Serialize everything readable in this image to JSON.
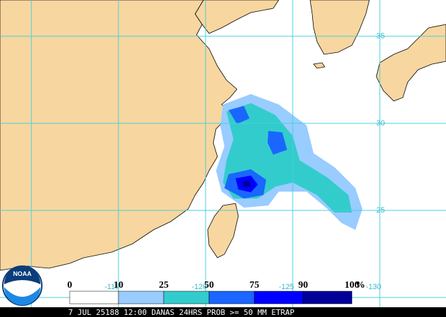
{
  "map": {
    "logo": "NOAA",
    "latitude_labels": [
      "35",
      "30",
      "25"
    ],
    "longitude_labels": [
      "-115",
      "-120",
      "-125",
      "-130"
    ],
    "legend": {
      "stops": [
        "0",
        "10",
        "25",
        "50",
        "75",
        "90",
        "100"
      ],
      "unit": "%",
      "colors": [
        "#ffffff",
        "#99ccff",
        "#33cccc",
        "#1a66ff",
        "#0000ff",
        "#000099"
      ]
    },
    "caption": "7 JUL 25188 12:00 DANAS 24HRS PROB >= 50 MM ETRAP"
  }
}
